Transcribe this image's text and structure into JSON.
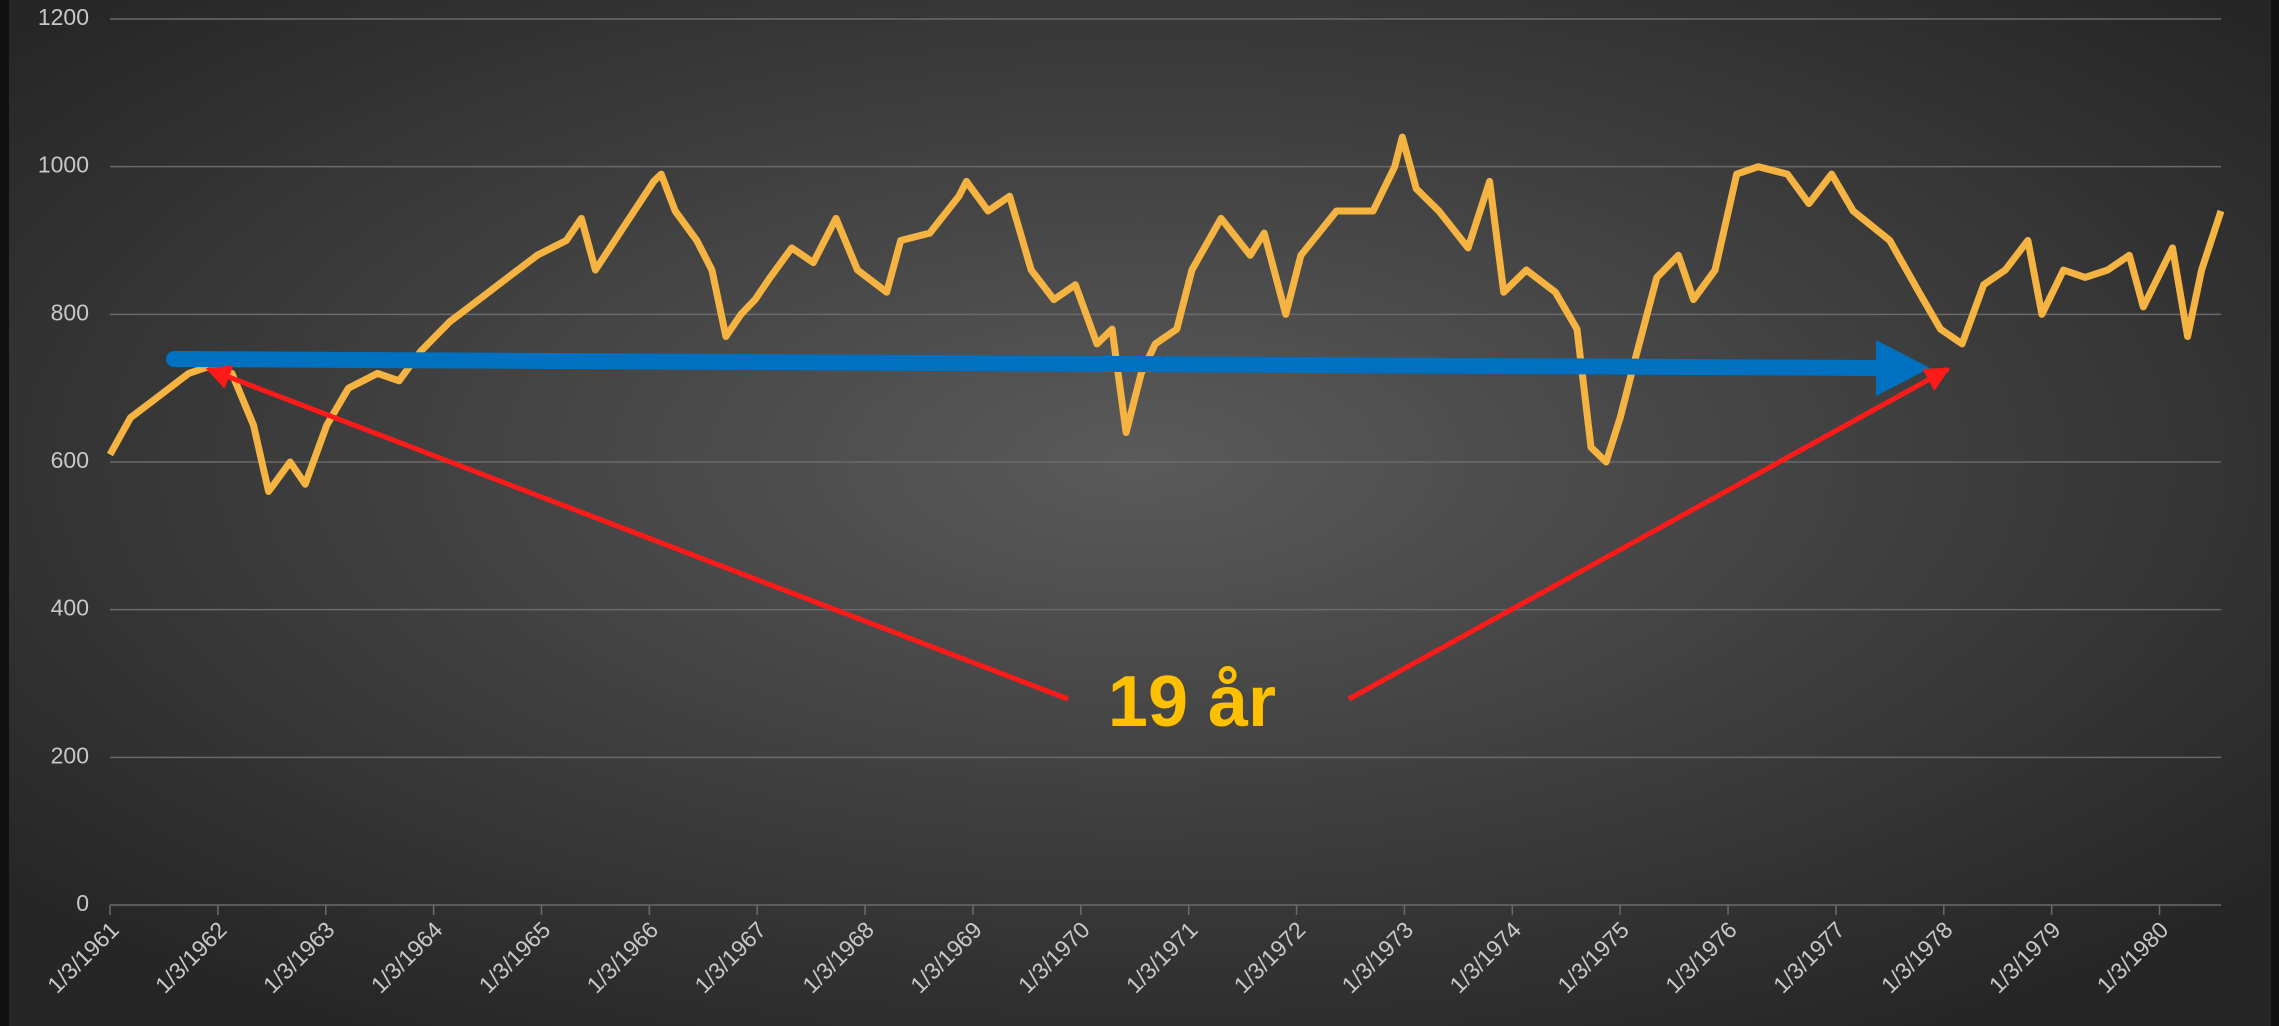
{
  "chart_data": {
    "type": "line",
    "color": "#f5b342",
    "annotation": "19 år",
    "x": [
      1961.0,
      1961.19,
      1961.46,
      1961.73,
      1961.93,
      1962.13,
      1962.33,
      1962.47,
      1962.67,
      1962.81,
      1963.01,
      1963.21,
      1963.48,
      1963.68,
      1963.88,
      1964.15,
      1964.42,
      1964.69,
      1964.96,
      1965.23,
      1965.37,
      1965.5,
      1965.77,
      1966.04,
      1966.11,
      1966.24,
      1966.44,
      1966.58,
      1966.71,
      1966.85,
      1966.98,
      1967.12,
      1967.32,
      1967.52,
      1967.73,
      1967.93,
      1968.2,
      1968.33,
      1968.6,
      1968.87,
      1968.94,
      1969.14,
      1969.34,
      1969.54,
      1969.75,
      1969.95,
      1970.15,
      1970.29,
      1970.42,
      1970.56,
      1970.69,
      1970.89,
      1971.03,
      1971.3,
      1971.57,
      1971.7,
      1971.9,
      1972.04,
      1972.37,
      1972.71,
      1972.91,
      1972.98,
      1973.11,
      1973.32,
      1973.59,
      1973.79,
      1973.92,
      1974.13,
      1974.4,
      1974.6,
      1974.73,
      1974.87,
      1975.0,
      1975.14,
      1975.34,
      1975.54,
      1975.68,
      1975.88,
      1976.08,
      1976.28,
      1976.55,
      1976.75,
      1976.96,
      1977.16,
      1977.5,
      1977.77,
      1977.97,
      1978.17,
      1978.37,
      1978.57,
      1978.78,
      1978.91,
      1979.11,
      1979.31,
      1979.52,
      1979.72,
      1979.85,
      1980.12,
      1980.26,
      1980.39,
      1980.57
    ],
    "values": [
      610,
      660,
      690,
      720,
      730,
      720,
      650,
      560,
      600,
      570,
      650,
      700,
      720,
      710,
      750,
      790,
      820,
      850,
      880,
      900,
      930,
      860,
      920,
      980,
      990,
      940,
      900,
      860,
      770,
      800,
      820,
      850,
      890,
      870,
      930,
      860,
      830,
      900,
      910,
      960,
      980,
      940,
      960,
      860,
      820,
      840,
      760,
      780,
      640,
      720,
      760,
      780,
      860,
      930,
      880,
      910,
      800,
      880,
      940,
      940,
      1000,
      1040,
      970,
      940,
      890,
      980,
      830,
      860,
      830,
      780,
      620,
      600,
      660,
      740,
      850,
      880,
      820,
      860,
      990,
      1000,
      990,
      950,
      990,
      940,
      900,
      830,
      780,
      760,
      840,
      860,
      900,
      800,
      860,
      850,
      860,
      880,
      810,
      890,
      770,
      860,
      940
    ],
    "xlim": [
      1961,
      1980.57
    ],
    "xticks": [
      {
        "value": 1961,
        "label": "1/3/1961"
      },
      {
        "value": 1962,
        "label": "1/3/1962"
      },
      {
        "value": 1963,
        "label": "1/3/1963"
      },
      {
        "value": 1964,
        "label": "1/3/1964"
      },
      {
        "value": 1965,
        "label": "1/3/1965"
      },
      {
        "value": 1966,
        "label": "1/3/1966"
      },
      {
        "value": 1967,
        "label": "1/3/1967"
      },
      {
        "value": 1968,
        "label": "1/3/1968"
      },
      {
        "value": 1969,
        "label": "1/3/1969"
      },
      {
        "value": 1970,
        "label": "1/3/1970"
      },
      {
        "value": 1971,
        "label": "1/3/1971"
      },
      {
        "value": 1972,
        "label": "1/3/1972"
      },
      {
        "value": 1973,
        "label": "1/3/1973"
      },
      {
        "value": 1974,
        "label": "1/3/1974"
      },
      {
        "value": 1975,
        "label": "1/3/1975"
      },
      {
        "value": 1976,
        "label": "1/3/1976"
      },
      {
        "value": 1977,
        "label": "1/3/1977"
      },
      {
        "value": 1978,
        "label": "1/3/1978"
      },
      {
        "value": 1979,
        "label": "1/3/1979"
      },
      {
        "value": 1980,
        "label": "1/3/1980"
      }
    ],
    "ylim": [
      0,
      1200
    ],
    "yticks": [
      0,
      200,
      400,
      600,
      800,
      1000,
      1200
    ],
    "grid": true
  }
}
